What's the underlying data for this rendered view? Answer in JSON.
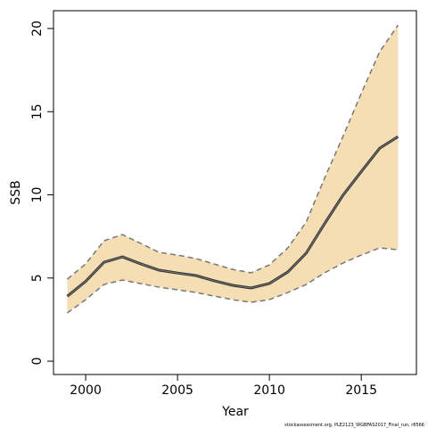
{
  "chart_data": {
    "type": "line",
    "xlabel": "Year",
    "ylabel": "SSB",
    "note": "stockassessment.org, PLE2123_WGBFAS2017_Final_run, r8566",
    "x": [
      1999,
      2000,
      2001,
      2002,
      2003,
      2004,
      2005,
      2006,
      2007,
      2008,
      2009,
      2010,
      2011,
      2012,
      2013,
      2014,
      2015,
      2016,
      2017
    ],
    "values": [
      3.9,
      4.8,
      5.95,
      6.27,
      5.85,
      5.47,
      5.3,
      5.15,
      4.83,
      4.56,
      4.4,
      4.67,
      5.36,
      6.49,
      8.26,
      9.97,
      11.4,
      12.8,
      13.5
    ],
    "upper": [
      4.93,
      5.85,
      7.24,
      7.61,
      7.08,
      6.54,
      6.38,
      6.17,
      5.84,
      5.52,
      5.31,
      5.79,
      6.81,
      8.36,
      11.0,
      13.5,
      16.1,
      18.6,
      20.2
    ],
    "lower": [
      2.9,
      3.7,
      4.61,
      4.88,
      4.66,
      4.45,
      4.29,
      4.13,
      3.91,
      3.7,
      3.54,
      3.7,
      4.13,
      4.61,
      5.31,
      5.9,
      6.38,
      6.81,
      6.7
    ],
    "color": "#333333",
    "band_color": "#f5deb3",
    "bound_color": "#777777",
    "xlim": [
      1998.25,
      2018.0
    ],
    "xticks": [
      2000,
      2005,
      2010,
      2015
    ],
    "ylim": [
      -0.8,
      21.07
    ],
    "yticks": [
      0,
      5,
      10,
      15,
      20
    ]
  }
}
